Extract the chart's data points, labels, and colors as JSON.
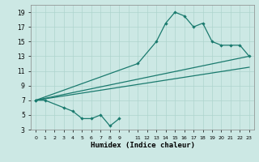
{
  "bg_color": "#cce8e4",
  "line_color": "#1a7a6e",
  "grid_color": "#aed4ce",
  "xlabel": "Humidex (Indice chaleur)",
  "xlim": [
    -0.5,
    23.5
  ],
  "ylim": [
    3,
    20
  ],
  "yticks": [
    3,
    5,
    7,
    9,
    11,
    13,
    15,
    17,
    19
  ],
  "xtick_labels": [
    "0",
    "1",
    "2",
    "3",
    "4",
    "5",
    "6",
    "7",
    "8",
    "9",
    "",
    "11",
    "12",
    "13",
    "14",
    "15",
    "16",
    "17",
    "18",
    "19",
    "20",
    "21",
    "22",
    "23"
  ],
  "line1_x": [
    0,
    1,
    3,
    4,
    5,
    6,
    7,
    8,
    9
  ],
  "line1_y": [
    7,
    7,
    6,
    5.5,
    4.5,
    4.5,
    5,
    3.5,
    4.5
  ],
  "line2_x": [
    0,
    11,
    13,
    14,
    15,
    16,
    17,
    18,
    19,
    20,
    21,
    22,
    23
  ],
  "line2_y": [
    7,
    12,
    15,
    17.5,
    19,
    18.5,
    17,
    17.5,
    15,
    14.5,
    14.5,
    14.5,
    13
  ],
  "line3_x": [
    0,
    23
  ],
  "line3_y": [
    7,
    13
  ],
  "line4_x": [
    0,
    23
  ],
  "line4_y": [
    7,
    11.5
  ]
}
